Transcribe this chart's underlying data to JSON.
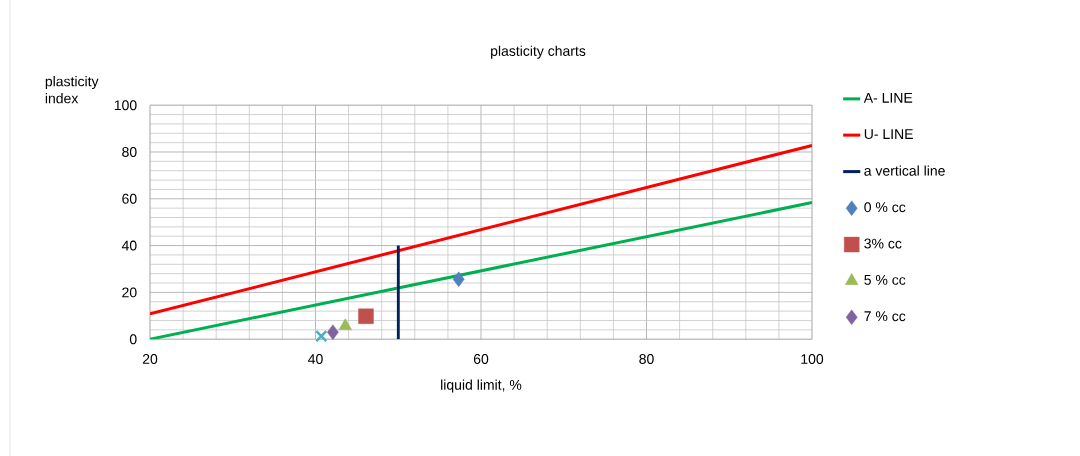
{
  "chart_data": {
    "type": "scatter",
    "title": "plasticity charts",
    "xlabel": "liquid limit, %",
    "ylabel": "plasticity index",
    "xlim": [
      20,
      100
    ],
    "xticks": [
      20,
      40,
      60,
      80,
      100
    ],
    "ylim": [
      0,
      100
    ],
    "yticks": [
      0,
      20,
      40,
      60,
      80,
      100
    ],
    "grid": true,
    "legend": "right",
    "series": [
      {
        "name": "A- LINE",
        "type": "line",
        "color": "#00b050",
        "x": [
          20,
          100
        ],
        "values": [
          0,
          58.4
        ]
      },
      {
        "name": "U- LINE",
        "type": "line",
        "color": "#ff0000",
        "x": [
          20,
          100
        ],
        "values": [
          10.8,
          82.8
        ]
      },
      {
        "name": "a vertical line",
        "type": "line",
        "color": "#002060",
        "x": [
          50,
          50
        ],
        "values": [
          0,
          40
        ]
      },
      {
        "name": "0 % cc",
        "type": "scatter",
        "marker": "diamond",
        "color": "#4f81bd",
        "x": [
          57.3
        ],
        "values": [
          25.6
        ]
      },
      {
        "name": "3% cc",
        "type": "scatter",
        "marker": "square",
        "color": "#c0504d",
        "x": [
          46.1
        ],
        "values": [
          9.8
        ]
      },
      {
        "name": "5 % cc",
        "type": "scatter",
        "marker": "triangle",
        "color": "#9bbb59",
        "x": [
          43.6
        ],
        "values": [
          5.6
        ]
      },
      {
        "name": "7 % cc",
        "type": "scatter",
        "marker": "diamond",
        "color": "#8064a2",
        "x": [
          42.1
        ],
        "values": [
          3
        ]
      },
      {
        "marker": "cross",
        "color": "#4bacc6",
        "x": [
          40.7
        ],
        "values": [
          1.3
        ]
      }
    ]
  }
}
